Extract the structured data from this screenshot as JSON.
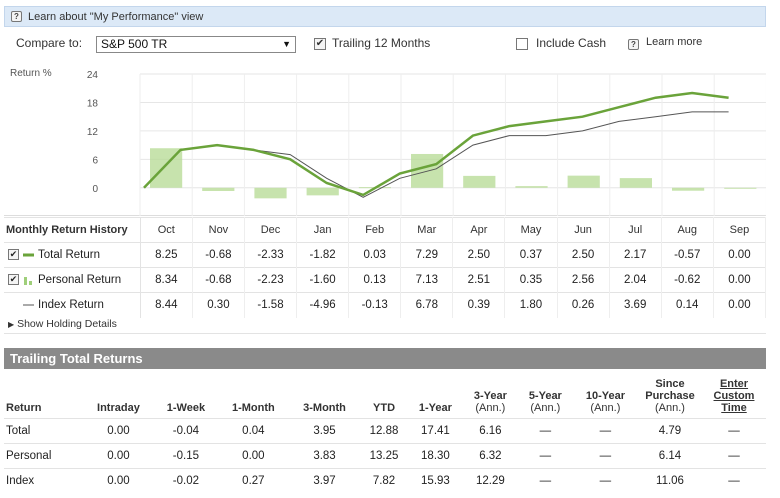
{
  "infobar": {
    "text": "Learn about \"My Performance\" view",
    "icon": "help-icon"
  },
  "controls": {
    "compare_label": "Compare to:",
    "compare_value": "S&P 500 TR",
    "trailing_label": "Trailing 12 Months",
    "trailing_checked": true,
    "cash_label": "Include Cash",
    "cash_checked": false,
    "learn_more": "Learn more"
  },
  "chart_data": {
    "type": "line",
    "ylabel": "Return %",
    "yticks": [
      24,
      18,
      12,
      6,
      0
    ],
    "ylim": [
      -3,
      24
    ],
    "months": [
      "Oct",
      "Nov",
      "Dec",
      "Jan",
      "Feb",
      "Mar",
      "Apr",
      "May",
      "Jun",
      "Jul",
      "Aug",
      "Sep"
    ],
    "series": [
      {
        "name": "Total Return",
        "color": "#6aa33a",
        "cumulative": [
          0,
          8,
          9,
          8,
          6,
          1,
          -1.5,
          3,
          5,
          11,
          13,
          14,
          15,
          17,
          19,
          20,
          19
        ]
      },
      {
        "name": "Index Return",
        "color": "#555555",
        "cumulative": [
          0,
          8,
          9,
          8,
          7,
          2,
          -2,
          2,
          4,
          9,
          11,
          11,
          12,
          14,
          15,
          16,
          16
        ]
      }
    ],
    "bars": [
      8.34,
      -0.68,
      -2.23,
      -1.6,
      0.13,
      7.13,
      2.51,
      0.35,
      2.56,
      2.04,
      -0.62,
      0.0
    ]
  },
  "monthly": {
    "header": "Monthly Return History",
    "months": [
      "Oct",
      "Nov",
      "Dec",
      "Jan",
      "Feb",
      "Mar",
      "Apr",
      "May",
      "Jun",
      "Jul",
      "Aug",
      "Sep"
    ],
    "rows": [
      {
        "label": "Total Return",
        "values": [
          "8.25",
          "-0.68",
          "-2.33",
          "-1.82",
          "0.03",
          "7.29",
          "2.50",
          "0.37",
          "2.50",
          "2.17",
          "-0.57",
          "0.00"
        ]
      },
      {
        "label": "Personal Return",
        "values": [
          "8.34",
          "-0.68",
          "-2.23",
          "-1.60",
          "0.13",
          "7.13",
          "2.51",
          "0.35",
          "2.56",
          "2.04",
          "-0.62",
          "0.00"
        ]
      },
      {
        "label": "Index Return",
        "values": [
          "8.44",
          "0.30",
          "-1.58",
          "-4.96",
          "-0.13",
          "6.78",
          "0.39",
          "1.80",
          "0.26",
          "3.69",
          "0.14",
          "0.00"
        ]
      }
    ]
  },
  "show_holding": "Show Holding Details",
  "trailing": {
    "title": "Trailing Total Returns",
    "columns": [
      {
        "l1": "Return",
        "l2": ""
      },
      {
        "l1": "Intraday",
        "l2": ""
      },
      {
        "l1": "1-Week",
        "l2": ""
      },
      {
        "l1": "1-Month",
        "l2": ""
      },
      {
        "l1": "3-Month",
        "l2": ""
      },
      {
        "l1": "YTD",
        "l2": ""
      },
      {
        "l1": "1-Year",
        "l2": ""
      },
      {
        "l1": "3-Year",
        "l2": "(Ann.)"
      },
      {
        "l1": "5-Year",
        "l2": "(Ann.)"
      },
      {
        "l1": "10-Year",
        "l2": "(Ann.)"
      },
      {
        "l1": "Since Purchase",
        "l2": "(Ann.)"
      },
      {
        "l1": "Enter Custom Time",
        "l2": ""
      }
    ],
    "rows": [
      {
        "label": "Total",
        "values": [
          "0.00",
          "-0.04",
          "0.04",
          "3.95",
          "12.88",
          "17.41",
          "6.16",
          "—",
          "—",
          "4.79",
          "—"
        ]
      },
      {
        "label": "Personal",
        "values": [
          "0.00",
          "-0.15",
          "0.00",
          "3.83",
          "13.25",
          "18.30",
          "6.32",
          "—",
          "—",
          "6.14",
          "—"
        ]
      },
      {
        "label": "Index",
        "values": [
          "0.00",
          "-0.02",
          "0.27",
          "3.97",
          "7.82",
          "15.93",
          "12.29",
          "—",
          "—",
          "11.06",
          "—"
        ]
      }
    ]
  }
}
